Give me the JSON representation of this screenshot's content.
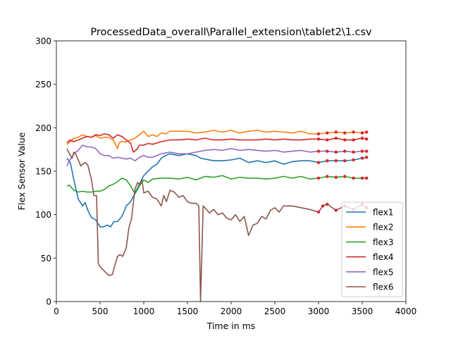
{
  "chart_data": {
    "type": "line",
    "title": "ProcessedData_overall\\Parallel_extension\\tablet2\\1.csv",
    "xlabel": "Time in ms",
    "ylabel": "Flex Sensor Value",
    "xlim": [
      0,
      4000
    ],
    "ylim": [
      0,
      300
    ],
    "xticks": [
      0,
      500,
      1000,
      1500,
      2000,
      2500,
      3000,
      3500,
      4000
    ],
    "yticks": [
      0,
      50,
      100,
      150,
      200,
      250,
      300
    ],
    "grid": false,
    "legend_position": "lower-right",
    "marker_range": [
      3000,
      3550
    ],
    "series": [
      {
        "name": "flex1",
        "color": "#1f77b4",
        "x": [
          120,
          160,
          200,
          250,
          300,
          330,
          360,
          400,
          450,
          500,
          540,
          580,
          620,
          660,
          700,
          750,
          800,
          850,
          900,
          950,
          1000,
          1050,
          1100,
          1150,
          1200,
          1250,
          1300,
          1400,
          1500,
          1600,
          1650,
          1700,
          1800,
          1900,
          2000,
          2100,
          2200,
          2300,
          2400,
          2500,
          2600,
          2700,
          2800,
          2900,
          3000,
          3100,
          3200,
          3300,
          3400,
          3500,
          3550
        ],
        "y": [
          165,
          160,
          140,
          118,
          110,
          114,
          105,
          97,
          94,
          86,
          86,
          88,
          86,
          92,
          92,
          98,
          110,
          115,
          125,
          135,
          145,
          150,
          155,
          158,
          165,
          168,
          170,
          168,
          170,
          168,
          165,
          164,
          162,
          162,
          163,
          165,
          160,
          162,
          160,
          162,
          158,
          161,
          162,
          162,
          160,
          162,
          162,
          162,
          163,
          165,
          166
        ]
      },
      {
        "name": "flex2",
        "color": "#ff7f0e",
        "x": [
          120,
          160,
          200,
          250,
          300,
          350,
          400,
          450,
          500,
          550,
          600,
          650,
          700,
          720,
          750,
          800,
          850,
          900,
          950,
          1000,
          1050,
          1100,
          1150,
          1200,
          1250,
          1300,
          1400,
          1500,
          1600,
          1700,
          1800,
          1900,
          2000,
          2100,
          2200,
          2300,
          2400,
          2500,
          2600,
          2700,
          2800,
          2900,
          3000,
          3100,
          3200,
          3300,
          3400,
          3500,
          3550
        ],
        "y": [
          181,
          184,
          188,
          189,
          192,
          190,
          189,
          191,
          188,
          189,
          189,
          186,
          176,
          183,
          184,
          184,
          186,
          188,
          192,
          196,
          190,
          192,
          190,
          194,
          193,
          196,
          196,
          196,
          194,
          195,
          197,
          195,
          197,
          194,
          196,
          197,
          195,
          196,
          195,
          194,
          196,
          193,
          193,
          194,
          195,
          194,
          195,
          194,
          195
        ]
      },
      {
        "name": "flex3",
        "color": "#2ca02c",
        "x": [
          120,
          150,
          200,
          250,
          300,
          350,
          400,
          450,
          500,
          550,
          600,
          650,
          700,
          750,
          800,
          850,
          900,
          950,
          1000,
          1050,
          1100,
          1200,
          1300,
          1400,
          1500,
          1600,
          1700,
          1800,
          1900,
          2000,
          2100,
          2200,
          2300,
          2400,
          2500,
          2600,
          2700,
          2800,
          2900,
          3000,
          3100,
          3200,
          3300,
          3400,
          3500,
          3550
        ],
        "y": [
          133,
          134,
          128,
          126,
          127,
          126,
          126,
          127,
          127,
          129,
          133,
          135,
          138,
          142,
          140,
          133,
          124,
          133,
          140,
          137,
          141,
          142,
          142,
          141,
          143,
          140,
          144,
          143,
          145,
          141,
          143,
          142,
          142,
          141,
          142,
          144,
          142,
          144,
          141,
          142,
          144,
          143,
          144,
          142,
          142,
          142
        ]
      },
      {
        "name": "flex4",
        "color": "#d62728",
        "x": [
          120,
          160,
          200,
          250,
          300,
          350,
          400,
          450,
          500,
          550,
          600,
          650,
          700,
          750,
          800,
          850,
          880,
          920,
          950,
          1000,
          1050,
          1100,
          1200,
          1300,
          1400,
          1500,
          1600,
          1700,
          1800,
          1900,
          2000,
          2100,
          2200,
          2300,
          2400,
          2500,
          2600,
          2700,
          2800,
          2900,
          3000,
          3100,
          3200,
          3300,
          3400,
          3500,
          3550
        ],
        "y": [
          183,
          186,
          184,
          186,
          188,
          190,
          189,
          192,
          191,
          193,
          192,
          188,
          192,
          190,
          186,
          182,
          172,
          175,
          180,
          180,
          182,
          181,
          184,
          186,
          186,
          187,
          186,
          188,
          186,
          186,
          187,
          186,
          186,
          186,
          187,
          186,
          187,
          186,
          186,
          187,
          187,
          186,
          188,
          186,
          186,
          188,
          187
        ]
      },
      {
        "name": "flex5",
        "color": "#9467bd",
        "x": [
          120,
          150,
          200,
          250,
          300,
          350,
          400,
          450,
          500,
          550,
          600,
          650,
          700,
          750,
          800,
          850,
          900,
          950,
          1000,
          1050,
          1100,
          1200,
          1300,
          1400,
          1500,
          1600,
          1700,
          1800,
          1900,
          2000,
          2100,
          2200,
          2300,
          2400,
          2500,
          2600,
          2700,
          2800,
          2900,
          3000,
          3100,
          3200,
          3300,
          3400,
          3500,
          3550
        ],
        "y": [
          156,
          162,
          170,
          174,
          180,
          178,
          178,
          176,
          170,
          168,
          168,
          165,
          166,
          165,
          164,
          165,
          162,
          166,
          168,
          166,
          166,
          170,
          172,
          170,
          170,
          172,
          174,
          175,
          174,
          176,
          174,
          175,
          174,
          173,
          174,
          172,
          173,
          174,
          172,
          173,
          173,
          172,
          173,
          172,
          173,
          173
        ]
      },
      {
        "name": "flex6",
        "color": "#8c564b",
        "x": [
          120,
          150,
          180,
          200,
          220,
          250,
          280,
          300,
          330,
          360,
          400,
          430,
          460,
          480,
          500,
          530,
          560,
          600,
          640,
          670,
          700,
          730,
          760,
          800,
          830,
          860,
          900,
          930,
          950,
          980,
          1000,
          1050,
          1100,
          1150,
          1200,
          1230,
          1260,
          1300,
          1350,
          1400,
          1450,
          1500,
          1550,
          1600,
          1630,
          1650,
          1680,
          1700,
          1750,
          1800,
          1850,
          1900,
          1950,
          2000,
          2050,
          2100,
          2150,
          2200,
          2250,
          2300,
          2350,
          2400,
          2450,
          2500,
          2550,
          2600,
          2700,
          2800,
          2900,
          3000,
          3050,
          3100,
          3200,
          3300,
          3400,
          3500,
          3550
        ],
        "y": [
          176,
          170,
          165,
          172,
          170,
          163,
          156,
          158,
          160,
          157,
          141,
          122,
          122,
          44,
          40,
          37,
          34,
          30,
          31,
          42,
          52,
          54,
          52,
          62,
          85,
          95,
          130,
          137,
          135,
          140,
          125,
          127,
          120,
          118,
          110,
          122,
          115,
          128,
          126,
          120,
          122,
          115,
          113,
          113,
          110,
          0,
          110,
          108,
          102,
          106,
          100,
          102,
          96,
          94,
          100,
          92,
          98,
          76,
          88,
          90,
          98,
          95,
          105,
          108,
          103,
          110,
          110,
          108,
          106,
          103,
          110,
          112,
          105,
          110,
          106,
          112,
          108
        ]
      }
    ]
  }
}
